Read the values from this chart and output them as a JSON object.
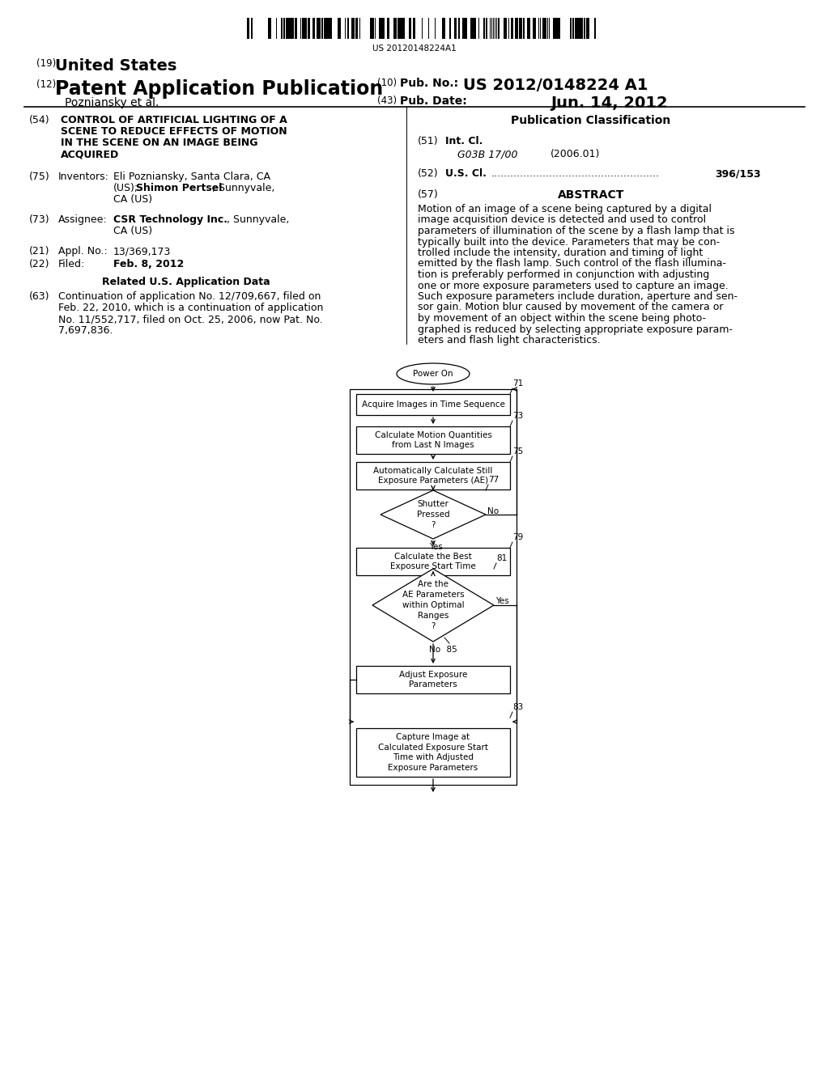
{
  "bg_color": "#ffffff",
  "barcode_text": "US 20120148224A1",
  "title_19": "(19) United States",
  "title_12": "(12) Patent Application Publication",
  "pub_no_label": "(10) Pub. No.:",
  "pub_no_value": "US 2012/0148224 A1",
  "pub_date_label": "(43) Pub. Date:",
  "pub_date_value": "Jun. 14, 2012",
  "inventor_line": "Pozniansky et al.",
  "field54_label": "(54)",
  "field54_text": "CONTROL OF ARTIFICIAL LIGHTING OF A\nSCENE TO REDUCE EFFECTS OF MOTION\nIN THE SCENE ON AN IMAGE BEING\nACQUIRED",
  "field75_label": "(75)",
  "field75_name": "Inventors:",
  "field75_text1": "Eli Pozniansky, Santa Clara, CA",
  "field75_text2": "(US);",
  "field75_text3": "Shimon Pertsel",
  "field75_text4": ", Sunnyvale,",
  "field75_text5": "CA (US)",
  "field73_label": "(73)",
  "field73_name": "Assignee:",
  "field73_bold": "CSR Technology Inc.",
  "field73_rest": ", Sunnyvale,",
  "field73_text2": "CA (US)",
  "field21_label": "(21)",
  "field21_name": "Appl. No.:",
  "field21_text": "13/369,173",
  "field22_label": "(22)",
  "field22_name": "Filed:",
  "field22_text": "Feb. 8, 2012",
  "related_header": "Related U.S. Application Data",
  "field63_label": "(63)",
  "field63_text": "Continuation of application No. 12/709,667, filed on\nFeb. 22, 2010, which is a continuation of application\nNo. 11/552,717, filed on Oct. 25, 2006, now Pat. No.\n7,697,836.",
  "pub_class_header": "Publication Classification",
  "field51_label": "(51)",
  "field51_name": "Int. Cl.",
  "field51_class": "G03B 17/00",
  "field51_year": "(2006.01)",
  "field52_label": "(52)",
  "field52_name": "U.S. Cl.",
  "field52_dots": "......................................................",
  "field52_value": "396/153",
  "field57_label": "(57)",
  "field57_name": "ABSTRACT",
  "abstract_text": "Motion of an image of a scene being captured by a digital\nimage acquisition device is detected and used to control\nparameters of illumination of the scene by a flash lamp that is\ntypically built into the device. Parameters that may be con-\ntrolled include the intensity, duration and timing of light\nemitted by the flash lamp. Such control of the flash illumina-\ntion is preferably performed in conjunction with adjusting\none or more exposure parameters used to capture an image.\nSuch exposure parameters include duration, aperture and sen-\nsor gain. Motion blur caused by movement of the camera or\nby movement of an object within the scene being photo-\ngraphed is reduced by selecting appropriate exposure param-\neters and flash light characteristics."
}
